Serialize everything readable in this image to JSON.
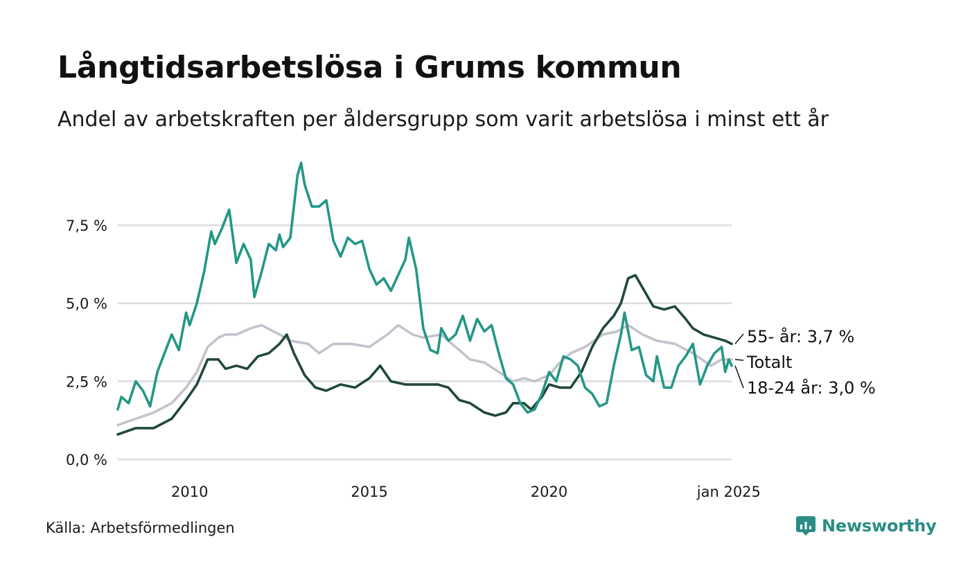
{
  "title": "Långtidsarbetslösa i Grums kommun",
  "subtitle": "Andel av arbetskraften per åldersgrupp som varit arbetslösa i minst ett år",
  "source": "Källa: Arbetsförmedlingen",
  "brand": {
    "name": "Newsworthy",
    "icon": "newsworthy-logo-icon",
    "color": "#2a8d84"
  },
  "chart_data": {
    "type": "line",
    "title": "Långtidsarbetslösa i Grums kommun",
    "xlabel": "",
    "ylabel": "",
    "xlim": [
      2008.0,
      2025.08
    ],
    "ylim": [
      0,
      9.5
    ],
    "y_ticks": [
      {
        "value": 0,
        "label": "0,0 %"
      },
      {
        "value": 2.5,
        "label": "2,5 %"
      },
      {
        "value": 5,
        "label": "5,0 %"
      },
      {
        "value": 7.5,
        "label": "7,5 %"
      }
    ],
    "x_ticks": [
      {
        "value": 2010,
        "label": "2010"
      },
      {
        "value": 2015,
        "label": "2015"
      },
      {
        "value": 2020,
        "label": "2020"
      },
      {
        "value": 2025.0,
        "label": "jan 2025"
      }
    ],
    "grid": true,
    "series": [
      {
        "name": "Totalt",
        "label": "Totalt",
        "color": "#c4c2cc",
        "points": [
          [
            2008.0,
            1.1
          ],
          [
            2008.5,
            1.3
          ],
          [
            2009.0,
            1.5
          ],
          [
            2009.5,
            1.8
          ],
          [
            2009.9,
            2.3
          ],
          [
            2010.2,
            2.8
          ],
          [
            2010.5,
            3.6
          ],
          [
            2010.8,
            3.9
          ],
          [
            2011.0,
            4.0
          ],
          [
            2011.3,
            4.0
          ],
          [
            2011.7,
            4.2
          ],
          [
            2012.0,
            4.3
          ],
          [
            2012.5,
            4.0
          ],
          [
            2012.8,
            3.8
          ],
          [
            2013.3,
            3.7
          ],
          [
            2013.6,
            3.4
          ],
          [
            2014.0,
            3.7
          ],
          [
            2014.5,
            3.7
          ],
          [
            2015.0,
            3.6
          ],
          [
            2015.5,
            4.0
          ],
          [
            2015.8,
            4.3
          ],
          [
            2016.2,
            4.0
          ],
          [
            2016.5,
            3.9
          ],
          [
            2017.0,
            4.0
          ],
          [
            2017.5,
            3.5
          ],
          [
            2017.8,
            3.2
          ],
          [
            2018.2,
            3.1
          ],
          [
            2018.6,
            2.8
          ],
          [
            2019.0,
            2.5
          ],
          [
            2019.3,
            2.6
          ],
          [
            2019.6,
            2.5
          ],
          [
            2020.0,
            2.7
          ],
          [
            2020.3,
            3.1
          ],
          [
            2020.6,
            3.4
          ],
          [
            2021.0,
            3.6
          ],
          [
            2021.5,
            4.0
          ],
          [
            2021.9,
            4.1
          ],
          [
            2022.2,
            4.3
          ],
          [
            2022.6,
            4.0
          ],
          [
            2023.0,
            3.8
          ],
          [
            2023.5,
            3.7
          ],
          [
            2024.0,
            3.4
          ],
          [
            2024.5,
            3.0
          ],
          [
            2024.8,
            3.2
          ],
          [
            2025.08,
            3.2
          ]
        ]
      },
      {
        "name": "55- år",
        "label": "55- år: 3,7 %",
        "color": "#21473d",
        "points": [
          [
            2008.0,
            0.8
          ],
          [
            2008.5,
            1.0
          ],
          [
            2009.0,
            1.0
          ],
          [
            2009.5,
            1.3
          ],
          [
            2009.9,
            1.9
          ],
          [
            2010.2,
            2.4
          ],
          [
            2010.5,
            3.2
          ],
          [
            2010.8,
            3.2
          ],
          [
            2011.0,
            2.9
          ],
          [
            2011.3,
            3.0
          ],
          [
            2011.6,
            2.9
          ],
          [
            2011.9,
            3.3
          ],
          [
            2012.2,
            3.4
          ],
          [
            2012.5,
            3.7
          ],
          [
            2012.7,
            4.0
          ],
          [
            2012.9,
            3.4
          ],
          [
            2013.2,
            2.7
          ],
          [
            2013.5,
            2.3
          ],
          [
            2013.8,
            2.2
          ],
          [
            2014.2,
            2.4
          ],
          [
            2014.6,
            2.3
          ],
          [
            2015.0,
            2.6
          ],
          [
            2015.3,
            3.0
          ],
          [
            2015.6,
            2.5
          ],
          [
            2016.0,
            2.4
          ],
          [
            2016.3,
            2.4
          ],
          [
            2016.6,
            2.4
          ],
          [
            2016.9,
            2.4
          ],
          [
            2017.2,
            2.3
          ],
          [
            2017.5,
            1.9
          ],
          [
            2017.8,
            1.8
          ],
          [
            2018.2,
            1.5
          ],
          [
            2018.5,
            1.4
          ],
          [
            2018.8,
            1.5
          ],
          [
            2019.0,
            1.8
          ],
          [
            2019.3,
            1.8
          ],
          [
            2019.5,
            1.6
          ],
          [
            2019.8,
            2.0
          ],
          [
            2020.0,
            2.4
          ],
          [
            2020.3,
            2.3
          ],
          [
            2020.6,
            2.3
          ],
          [
            2020.9,
            2.8
          ],
          [
            2021.2,
            3.6
          ],
          [
            2021.5,
            4.2
          ],
          [
            2021.8,
            4.6
          ],
          [
            2022.0,
            5.0
          ],
          [
            2022.2,
            5.8
          ],
          [
            2022.4,
            5.9
          ],
          [
            2022.6,
            5.5
          ],
          [
            2022.9,
            4.9
          ],
          [
            2023.2,
            4.8
          ],
          [
            2023.5,
            4.9
          ],
          [
            2023.8,
            4.5
          ],
          [
            2024.0,
            4.2
          ],
          [
            2024.3,
            4.0
          ],
          [
            2024.6,
            3.9
          ],
          [
            2024.9,
            3.8
          ],
          [
            2025.08,
            3.7
          ]
        ]
      },
      {
        "name": "18-24 år",
        "label": "18-24 år: 3,0 %",
        "color": "#239786",
        "points": [
          [
            2008.0,
            1.6
          ],
          [
            2008.1,
            2.0
          ],
          [
            2008.3,
            1.8
          ],
          [
            2008.5,
            2.5
          ],
          [
            2008.7,
            2.2
          ],
          [
            2008.9,
            1.7
          ],
          [
            2009.1,
            2.8
          ],
          [
            2009.3,
            3.4
          ],
          [
            2009.5,
            4.0
          ],
          [
            2009.7,
            3.5
          ],
          [
            2009.9,
            4.7
          ],
          [
            2010.0,
            4.3
          ],
          [
            2010.2,
            5.0
          ],
          [
            2010.4,
            6.0
          ],
          [
            2010.6,
            7.3
          ],
          [
            2010.7,
            6.9
          ],
          [
            2010.9,
            7.4
          ],
          [
            2011.1,
            8.0
          ],
          [
            2011.3,
            6.3
          ],
          [
            2011.5,
            6.9
          ],
          [
            2011.7,
            6.4
          ],
          [
            2011.8,
            5.2
          ],
          [
            2012.0,
            6.0
          ],
          [
            2012.2,
            6.9
          ],
          [
            2012.4,
            6.7
          ],
          [
            2012.5,
            7.2
          ],
          [
            2012.6,
            6.8
          ],
          [
            2012.8,
            7.1
          ],
          [
            2013.0,
            9.1
          ],
          [
            2013.1,
            9.5
          ],
          [
            2013.2,
            8.8
          ],
          [
            2013.4,
            8.1
          ],
          [
            2013.6,
            8.1
          ],
          [
            2013.8,
            8.3
          ],
          [
            2014.0,
            7.0
          ],
          [
            2014.2,
            6.5
          ],
          [
            2014.4,
            7.1
          ],
          [
            2014.6,
            6.9
          ],
          [
            2014.8,
            7.0
          ],
          [
            2015.0,
            6.1
          ],
          [
            2015.2,
            5.6
          ],
          [
            2015.4,
            5.8
          ],
          [
            2015.6,
            5.4
          ],
          [
            2015.8,
            5.9
          ],
          [
            2016.0,
            6.4
          ],
          [
            2016.1,
            7.1
          ],
          [
            2016.3,
            6.1
          ],
          [
            2016.5,
            4.2
          ],
          [
            2016.7,
            3.5
          ],
          [
            2016.9,
            3.4
          ],
          [
            2017.0,
            4.2
          ],
          [
            2017.2,
            3.8
          ],
          [
            2017.4,
            4.0
          ],
          [
            2017.6,
            4.6
          ],
          [
            2017.8,
            3.8
          ],
          [
            2018.0,
            4.5
          ],
          [
            2018.2,
            4.1
          ],
          [
            2018.4,
            4.3
          ],
          [
            2018.6,
            3.4
          ],
          [
            2018.8,
            2.6
          ],
          [
            2019.0,
            2.4
          ],
          [
            2019.2,
            1.8
          ],
          [
            2019.4,
            1.5
          ],
          [
            2019.6,
            1.6
          ],
          [
            2019.8,
            2.1
          ],
          [
            2020.0,
            2.8
          ],
          [
            2020.2,
            2.5
          ],
          [
            2020.4,
            3.3
          ],
          [
            2020.6,
            3.2
          ],
          [
            2020.8,
            3.0
          ],
          [
            2021.0,
            2.3
          ],
          [
            2021.2,
            2.1
          ],
          [
            2021.4,
            1.7
          ],
          [
            2021.6,
            1.8
          ],
          [
            2021.8,
            3.0
          ],
          [
            2022.0,
            4.0
          ],
          [
            2022.1,
            4.7
          ],
          [
            2022.3,
            3.5
          ],
          [
            2022.5,
            3.6
          ],
          [
            2022.7,
            2.7
          ],
          [
            2022.9,
            2.5
          ],
          [
            2023.0,
            3.3
          ],
          [
            2023.2,
            2.3
          ],
          [
            2023.4,
            2.3
          ],
          [
            2023.6,
            3.0
          ],
          [
            2023.8,
            3.3
          ],
          [
            2024.0,
            3.7
          ],
          [
            2024.2,
            2.4
          ],
          [
            2024.4,
            3.0
          ],
          [
            2024.6,
            3.4
          ],
          [
            2024.8,
            3.6
          ],
          [
            2024.9,
            2.8
          ],
          [
            2025.0,
            3.2
          ],
          [
            2025.08,
            3.0
          ]
        ]
      }
    ]
  }
}
